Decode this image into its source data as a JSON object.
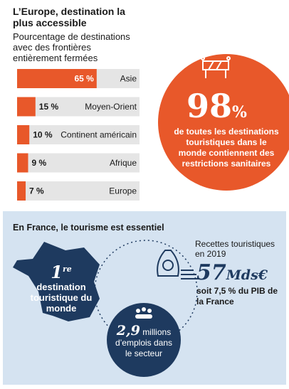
{
  "chart_data": {
    "type": "bar",
    "title": "L’Europe, destination la plus accessible",
    "subtitle": "Pourcentage de destinations avec des frontières entièrement fermées",
    "categories": [
      "Asie",
      "Moyen-Orient",
      "Continent américain",
      "Afrique",
      "Europe"
    ],
    "values": [
      65,
      15,
      10,
      9,
      7
    ],
    "value_labels": [
      "65 %",
      "15 %",
      "10 %",
      "9 %",
      "7 %"
    ],
    "color": "#e8582a",
    "xlim": [
      0,
      100
    ]
  },
  "highlight": {
    "value": "98",
    "unit": "%",
    "text": "de toutes les destinations touristiques dans le monde contiennent des restrictions sanitaires"
  },
  "france": {
    "title": "En France, le tourisme est essentiel",
    "rank": {
      "number": "1",
      "suffix": "re",
      "text": "destination touristique du monde"
    },
    "revenue": {
      "label": "Recettes touristiques en 2019",
      "value": "57",
      "unit": "Mds€",
      "note": "soit 7,5 % du PIB de la France"
    },
    "jobs": {
      "value": "2,9",
      "text": "millions d’emplois dans le secteur"
    }
  }
}
